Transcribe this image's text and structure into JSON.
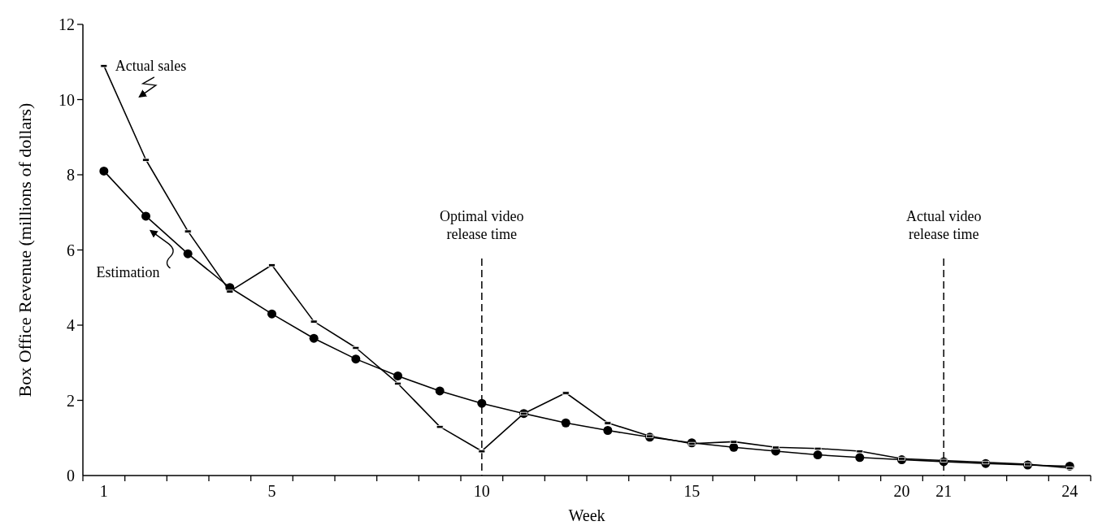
{
  "chart_data": {
    "type": "line",
    "xlabel": "Week",
    "ylabel": "Box Office Revenue (millions of dollars)",
    "x": [
      1,
      2,
      3,
      4,
      5,
      6,
      7,
      8,
      9,
      10,
      11,
      12,
      13,
      14,
      15,
      16,
      17,
      18,
      19,
      20,
      21,
      22,
      23,
      24
    ],
    "series": [
      {
        "name": "Actual sales",
        "color": "#000000",
        "marker": "square",
        "values": [
          10.9,
          8.4,
          6.5,
          4.9,
          5.6,
          4.1,
          3.4,
          2.45,
          1.3,
          0.65,
          1.65,
          2.2,
          1.4,
          1.05,
          0.85,
          0.9,
          0.75,
          0.72,
          0.65,
          0.45,
          0.4,
          0.35,
          0.3,
          0.2
        ]
      },
      {
        "name": "Estimation",
        "color": "#000000",
        "marker": "circle",
        "values": [
          8.1,
          6.9,
          5.9,
          5.0,
          4.3,
          3.65,
          3.1,
          2.65,
          2.25,
          1.92,
          1.65,
          1.4,
          1.2,
          1.02,
          0.87,
          0.75,
          0.65,
          0.55,
          0.48,
          0.42,
          0.37,
          0.32,
          0.28,
          0.25
        ]
      }
    ],
    "xlim": [
      0.5,
      24.5
    ],
    "xticks": [
      {
        "value": 0.5,
        "label": null
      },
      {
        "value": 1,
        "label": "1"
      },
      {
        "value": 1.5,
        "label": null
      },
      {
        "value": 2.5,
        "label": null
      },
      {
        "value": 3.5,
        "label": null
      },
      {
        "value": 4.5,
        "label": null
      },
      {
        "value": 5,
        "label": "5"
      },
      {
        "value": 5.5,
        "label": null
      },
      {
        "value": 6.5,
        "label": null
      },
      {
        "value": 7.5,
        "label": null
      },
      {
        "value": 8.5,
        "label": null
      },
      {
        "value": 9.5,
        "label": null
      },
      {
        "value": 10,
        "label": "10"
      },
      {
        "value": 10.5,
        "label": null
      },
      {
        "value": 11.5,
        "label": null
      },
      {
        "value": 12.5,
        "label": null
      },
      {
        "value": 13.5,
        "label": null
      },
      {
        "value": 14.5,
        "label": null
      },
      {
        "value": 15,
        "label": "15"
      },
      {
        "value": 15.5,
        "label": null
      },
      {
        "value": 16.5,
        "label": null
      },
      {
        "value": 17.5,
        "label": null
      },
      {
        "value": 18.5,
        "label": null
      },
      {
        "value": 19.5,
        "label": null
      },
      {
        "value": 20,
        "label": "20"
      },
      {
        "value": 20.5,
        "label": null
      },
      {
        "value": 21,
        "label": "21"
      },
      {
        "value": 21.5,
        "label": null
      },
      {
        "value": 22.5,
        "label": null
      },
      {
        "value": 23.5,
        "label": null
      },
      {
        "value": 24,
        "label": "24"
      },
      {
        "value": 24.5,
        "label": null
      }
    ],
    "ylim": [
      0,
      12
    ],
    "yticks": [
      0,
      2,
      4,
      6,
      8,
      10,
      12
    ],
    "ref_lines": [
      {
        "axis": "x",
        "value": 10,
        "label": "Optimal video\nrelease time",
        "line_style": "dashed"
      },
      {
        "axis": "x",
        "value": 21,
        "label": "Actual video\nrelease time",
        "line_style": "dashed"
      }
    ],
    "grid": false,
    "legend": false,
    "line_style": "solid"
  }
}
